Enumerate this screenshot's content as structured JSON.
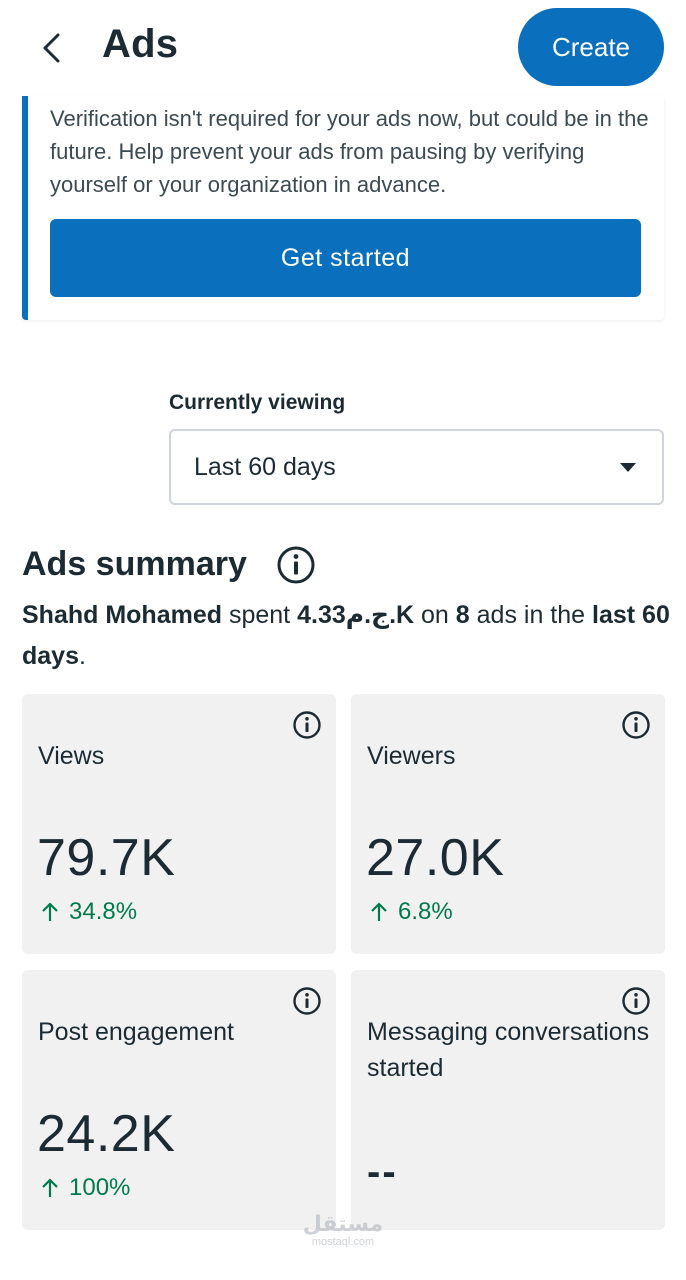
{
  "header": {
    "title": "Ads",
    "create_label": "Create"
  },
  "notice": {
    "text": "Verification isn't required for your ads now, but could be in the future. Help prevent your ads from pausing by verifying yourself or your organization in advance.",
    "button_label": "Get started"
  },
  "viewing": {
    "label": "Currently viewing",
    "value": "Last 60 days"
  },
  "summary": {
    "title": "Ads summary",
    "name": "Shahd Mohamed",
    "spent_word": "spent",
    "amount": "4.33ج.م.K",
    "on_word": "on",
    "count": "8",
    "ads_in_the": "ads in the",
    "period": "last 60 days",
    "end": "."
  },
  "metrics": [
    {
      "label": "Views",
      "value": "79.7K",
      "change": "34.8%"
    },
    {
      "label": "Viewers",
      "value": "27.0K",
      "change": "6.8%"
    },
    {
      "label": "Post engagement",
      "value": "24.2K",
      "change": "100%"
    },
    {
      "label": "Messaging conversations started",
      "value": "--"
    }
  ],
  "colors": {
    "accent": "#0a6fbd",
    "positive": "#007a4d",
    "card_bg": "#f1f1f1"
  },
  "watermark": {
    "mark": "مستقل",
    "url": "mostaql.com"
  }
}
